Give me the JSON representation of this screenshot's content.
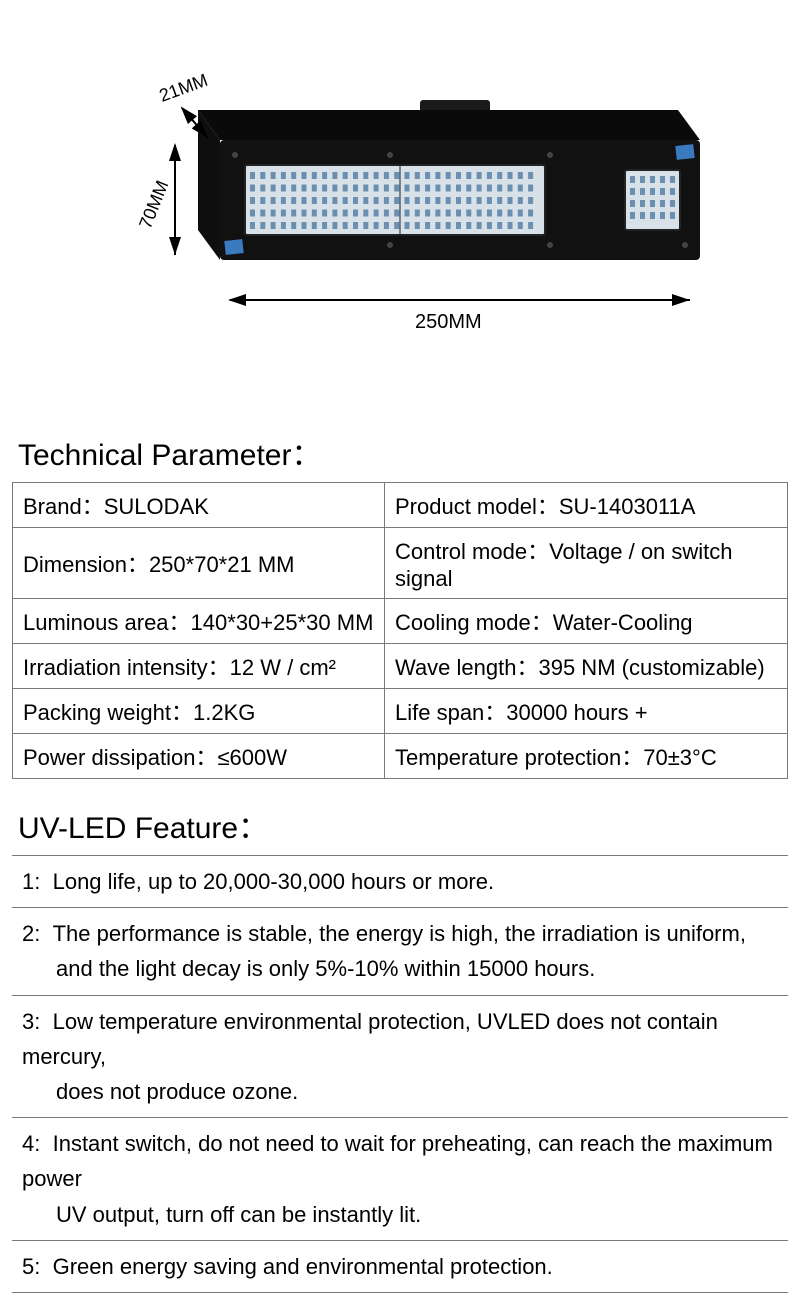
{
  "diagram": {
    "depth_label": "21MM",
    "height_label": "70MM",
    "width_label": "250MM",
    "body_color": "#111111",
    "panel_color": "#d8e0e8",
    "led_dot_color": "#6b8fb0"
  },
  "tech": {
    "title": "Technical Parameter：",
    "rows": [
      {
        "l_label": "Brand：",
        "l_value": "SULODAK",
        "r_label": "Product model：",
        "r_value": "SU-1403011A"
      },
      {
        "l_label": "Dimension：",
        "l_value": "250*70*21 MM",
        "r_label": "Control mode：",
        "r_value": "Voltage / on switch signal"
      },
      {
        "l_label": "Luminous area：",
        "l_value": "140*30+25*30 MM",
        "r_label": "Cooling mode：",
        "r_value": "Water-Cooling"
      },
      {
        "l_label": "Irradiation intensity：",
        "l_value": "12 W / cm²",
        "r_label": "Wave length：",
        "r_value": "395 NM (customizable)"
      },
      {
        "l_label": "Packing weight：",
        "l_value": "1.2KG",
        "r_label": "Life span：",
        "r_value": "30000 hours +"
      },
      {
        "l_label": "Power dissipation：",
        "l_value": "≤600W",
        "r_label": "Temperature protection：",
        "r_value": "70±3°C"
      }
    ]
  },
  "feature": {
    "title": "UV-LED Feature：",
    "items": [
      {
        "num": "1:",
        "lines": [
          "Long life, up to 20,000-30,000 hours or more."
        ]
      },
      {
        "num": "2:",
        "lines": [
          "The performance  is stable, the energy is high, the irradiation is uniform,",
          "and the light decay is only 5%-10% within 15000 hours."
        ]
      },
      {
        "num": "3:",
        "lines": [
          "Low temperature environmental protection, UVLED does not contain mercury,",
          "does not produce ozone."
        ]
      },
      {
        "num": "4:",
        "lines": [
          "Instant switch, do not need to wait for preheating, can reach the maximum power",
          "UV output, turn off can be instantly lit."
        ]
      },
      {
        "num": "5:",
        "lines": [
          "Green energy saving and environmental protection."
        ]
      }
    ]
  }
}
